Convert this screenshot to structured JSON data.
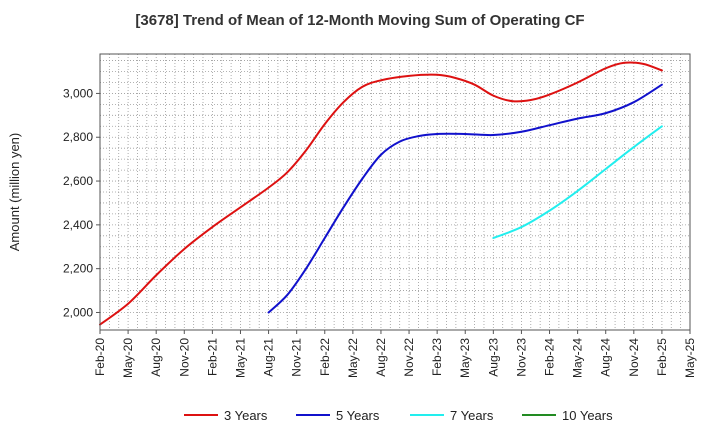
{
  "chart_data": {
    "type": "line",
    "title": "[3678]  Trend of Mean of 12-Month Moving Sum of Operating CF",
    "xlabel": "",
    "ylabel": "Amount (million yen)",
    "ylim": [
      1920,
      3180
    ],
    "yticks": [
      2000,
      2200,
      2400,
      2600,
      2800,
      3000
    ],
    "ytick_labels": [
      "2,000",
      "2,200",
      "2,400",
      "2,600",
      "2,800",
      "3,000"
    ],
    "x_months_range": [
      0,
      63
    ],
    "xticks": [
      {
        "m": 0,
        "label": "Feb-20"
      },
      {
        "m": 3,
        "label": "May-20"
      },
      {
        "m": 6,
        "label": "Aug-20"
      },
      {
        "m": 9,
        "label": "Nov-20"
      },
      {
        "m": 12,
        "label": "Feb-21"
      },
      {
        "m": 15,
        "label": "May-21"
      },
      {
        "m": 18,
        "label": "Aug-21"
      },
      {
        "m": 21,
        "label": "Nov-21"
      },
      {
        "m": 24,
        "label": "Feb-22"
      },
      {
        "m": 27,
        "label": "May-22"
      },
      {
        "m": 30,
        "label": "Aug-22"
      },
      {
        "m": 33,
        "label": "Nov-22"
      },
      {
        "m": 36,
        "label": "Feb-23"
      },
      {
        "m": 39,
        "label": "May-23"
      },
      {
        "m": 42,
        "label": "Aug-23"
      },
      {
        "m": 45,
        "label": "Nov-23"
      },
      {
        "m": 48,
        "label": "Feb-24"
      },
      {
        "m": 51,
        "label": "May-24"
      },
      {
        "m": 54,
        "label": "Aug-24"
      },
      {
        "m": 57,
        "label": "Nov-24"
      },
      {
        "m": 60,
        "label": "Feb-25"
      },
      {
        "m": 63,
        "label": "May-25"
      }
    ],
    "grid": true,
    "legend_position": "bottom",
    "series": [
      {
        "name": "3 Years",
        "color": "#dd1111",
        "points": [
          [
            0,
            1945
          ],
          [
            3,
            2040
          ],
          [
            6,
            2170
          ],
          [
            9,
            2290
          ],
          [
            12,
            2390
          ],
          [
            15,
            2480
          ],
          [
            18,
            2570
          ],
          [
            20,
            2640
          ],
          [
            22,
            2740
          ],
          [
            24,
            2860
          ],
          [
            26,
            2960
          ],
          [
            28,
            3030
          ],
          [
            30,
            3060
          ],
          [
            33,
            3080
          ],
          [
            36,
            3085
          ],
          [
            38,
            3070
          ],
          [
            40,
            3040
          ],
          [
            42,
            2990
          ],
          [
            44,
            2965
          ],
          [
            46,
            2970
          ],
          [
            48,
            2995
          ],
          [
            51,
            3050
          ],
          [
            54,
            3115
          ],
          [
            56,
            3140
          ],
          [
            58,
            3135
          ],
          [
            60,
            3105
          ]
        ]
      },
      {
        "name": "5 Years",
        "color": "#1111cc",
        "points": [
          [
            18,
            2000
          ],
          [
            20,
            2080
          ],
          [
            22,
            2200
          ],
          [
            24,
            2340
          ],
          [
            26,
            2480
          ],
          [
            28,
            2610
          ],
          [
            30,
            2720
          ],
          [
            32,
            2780
          ],
          [
            34,
            2805
          ],
          [
            36,
            2815
          ],
          [
            39,
            2815
          ],
          [
            42,
            2810
          ],
          [
            45,
            2825
          ],
          [
            48,
            2855
          ],
          [
            51,
            2885
          ],
          [
            54,
            2910
          ],
          [
            57,
            2960
          ],
          [
            60,
            3040
          ]
        ]
      },
      {
        "name": "7 Years",
        "color": "#22eeee",
        "points": [
          [
            42,
            2340
          ],
          [
            45,
            2390
          ],
          [
            48,
            2465
          ],
          [
            51,
            2555
          ],
          [
            54,
            2655
          ],
          [
            57,
            2755
          ],
          [
            60,
            2850
          ]
        ]
      },
      {
        "name": "10 Years",
        "color": "#228b22",
        "points": []
      }
    ]
  }
}
